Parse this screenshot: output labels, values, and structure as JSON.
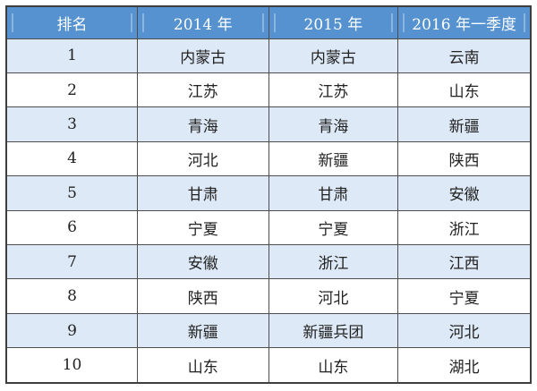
{
  "chart_data": {
    "type": "table",
    "title": "",
    "columns": [
      "排名",
      "2014 年",
      "2015 年",
      "2016 年一季度"
    ],
    "rows": [
      [
        "1",
        "内蒙古",
        "内蒙古",
        "云南"
      ],
      [
        "2",
        "江苏",
        "江苏",
        "山东"
      ],
      [
        "3",
        "青海",
        "青海",
        "新疆"
      ],
      [
        "4",
        "河北",
        "新疆",
        "陕西"
      ],
      [
        "5",
        "甘肃",
        "甘肃",
        "安徽"
      ],
      [
        "6",
        "宁夏",
        "宁夏",
        "浙江"
      ],
      [
        "7",
        "安徽",
        "浙江",
        "江西"
      ],
      [
        "8",
        "陕西",
        "河北",
        "宁夏"
      ],
      [
        "9",
        "新疆",
        "新疆兵团",
        "河北"
      ],
      [
        "10",
        "山东",
        "山东",
        "湖北"
      ]
    ]
  },
  "colors": {
    "header_bg": "#5592cf",
    "header_text": "#ffffff",
    "stripe_bg": "#dde9f6",
    "row_bg": "#ffffff",
    "grid_border": "#4d4d4d",
    "outer_border": "#3e3e3e",
    "body_text": "#222222"
  }
}
